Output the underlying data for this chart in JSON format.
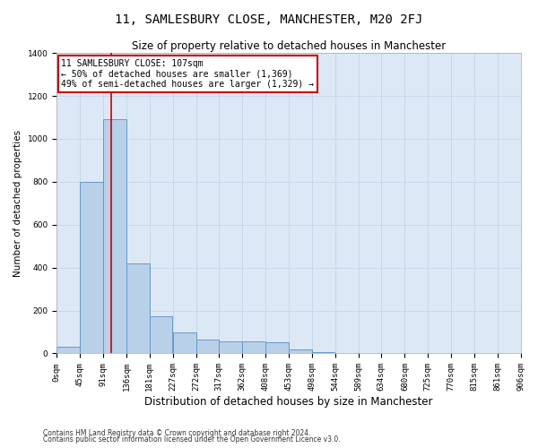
{
  "title": "11, SAMLESBURY CLOSE, MANCHESTER, M20 2FJ",
  "subtitle": "Size of property relative to detached houses in Manchester",
  "xlabel": "Distribution of detached houses by size in Manchester",
  "ylabel": "Number of detached properties",
  "footnote1": "Contains HM Land Registry data © Crown copyright and database right 2024.",
  "footnote2": "Contains public sector information licensed under the Open Government Licence v3.0.",
  "bin_edges": [
    0,
    45,
    91,
    136,
    181,
    227,
    272,
    317,
    362,
    408,
    453,
    498,
    544,
    589,
    634,
    680,
    725,
    770,
    815,
    861,
    906
  ],
  "bar_heights": [
    30,
    800,
    1090,
    420,
    175,
    100,
    65,
    55,
    55,
    50,
    20,
    5,
    0,
    0,
    0,
    0,
    0,
    0,
    0,
    0
  ],
  "bar_color": "#b8d0e8",
  "bar_edge_color": "#6699cc",
  "grid_color": "#c5d8ea",
  "background_color": "#dce8f5",
  "property_size": 107,
  "vline_color": "#cc0000",
  "annotation_text": "11 SAMLESBURY CLOSE: 107sqm\n← 50% of detached houses are smaller (1,369)\n49% of semi-detached houses are larger (1,329) →",
  "annotation_box_color": "#ffffff",
  "annotation_border_color": "#cc0000",
  "ylim": [
    0,
    1400
  ],
  "yticks": [
    0,
    200,
    400,
    600,
    800,
    1000,
    1200,
    1400
  ],
  "title_fontsize": 10,
  "subtitle_fontsize": 8.5,
  "ylabel_fontsize": 7.5,
  "xlabel_fontsize": 8.5,
  "annotation_fontsize": 7,
  "tick_fontsize": 6.5,
  "footnote_fontsize": 5.5
}
